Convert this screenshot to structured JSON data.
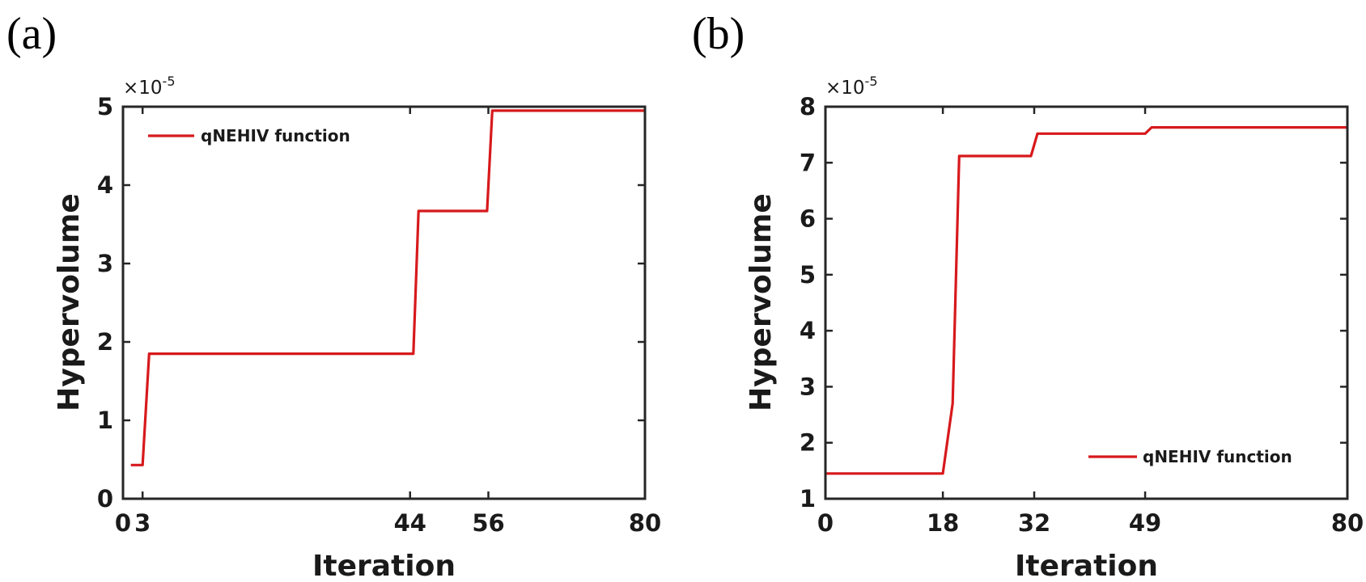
{
  "chart_data": [
    {
      "type": "line",
      "panel_label": "(a)",
      "xlabel": "Iteration",
      "ylabel": "Hypervolume",
      "exponent_base": "×10",
      "exponent_power": "-5",
      "xlim": [
        0,
        80
      ],
      "ylim": [
        0,
        5
      ],
      "xticks": [
        0,
        3,
        44,
        56,
        80
      ],
      "yticks": [
        0,
        1,
        2,
        3,
        4,
        5
      ],
      "legend_position": "top-left",
      "series": [
        {
          "name": "qNEHIV function",
          "color": "#d7191c",
          "x": [
            1.2,
            3,
            4,
            44.5,
            45.3,
            55.8,
            56.6,
            80
          ],
          "y": [
            0.43,
            0.43,
            1.85,
            1.85,
            3.67,
            3.67,
            4.95,
            4.95
          ]
        }
      ]
    },
    {
      "type": "line",
      "panel_label": "(b)",
      "xlabel": "Iteration",
      "ylabel": "Hypervolume",
      "exponent_base": "×10",
      "exponent_power": "-5",
      "xlim": [
        0,
        80
      ],
      "ylim": [
        1,
        8
      ],
      "xticks": [
        0,
        18,
        32,
        49,
        80
      ],
      "yticks": [
        1,
        2,
        3,
        4,
        5,
        6,
        7,
        8
      ],
      "legend_position": "bottom-right",
      "series": [
        {
          "name": "qNEHIV function",
          "color": "#d7191c",
          "x": [
            0,
            18,
            19.5,
            20.5,
            31.5,
            32.5,
            49,
            50,
            80
          ],
          "y": [
            1.45,
            1.45,
            2.7,
            7.12,
            7.12,
            7.52,
            7.52,
            7.63,
            7.63
          ]
        }
      ]
    }
  ]
}
